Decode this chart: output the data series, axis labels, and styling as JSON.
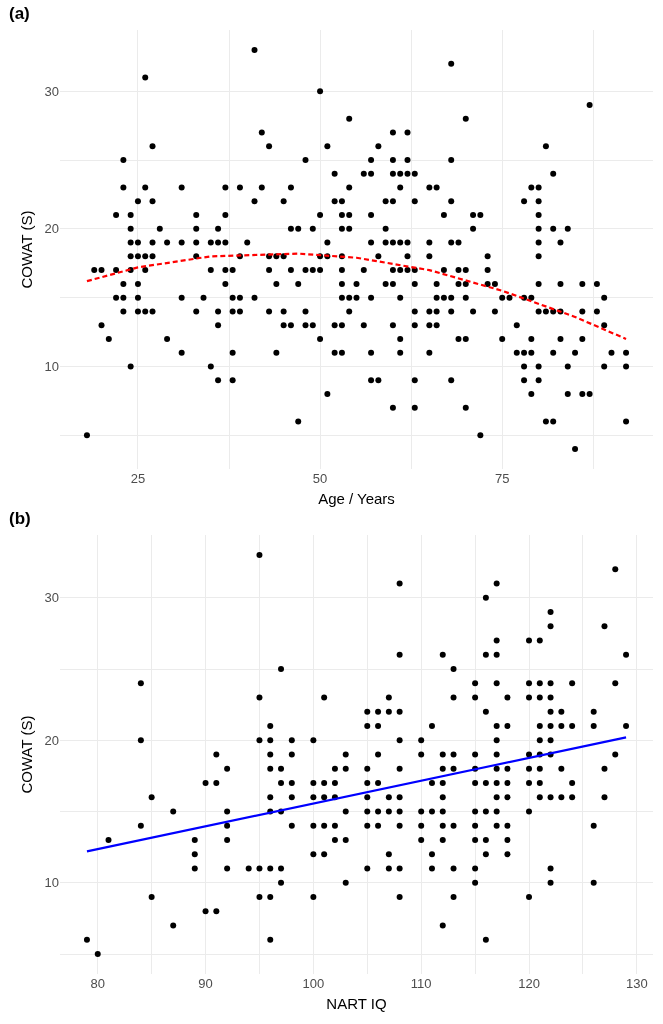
{
  "chart_data": [
    {
      "type": "scatter",
      "title": "(a)",
      "xlabel": "Age / Years",
      "ylabel": "COWAT (S)",
      "grid": true,
      "xlim": [
        14.3,
        95.7
      ],
      "xticks": [
        25,
        {
          "value": 37.5,
          "label": null
        },
        50,
        {
          "value": 62.5,
          "label": null
        },
        75,
        {
          "value": 87.5,
          "label": null
        }
      ],
      "ylim": [
        2.55,
        34.45
      ],
      "yticks": [
        {
          "value": 5,
          "label": null
        },
        10,
        {
          "value": 15,
          "label": null
        },
        20,
        {
          "value": 25,
          "label": null
        },
        30
      ],
      "series": [
        {
          "color": "#000000",
          "marker": "circle",
          "x": [
            41,
            68,
            26,
            50,
            87,
            54,
            70,
            42,
            60,
            62,
            27,
            43,
            51,
            58,
            81,
            23,
            48,
            57,
            60,
            62,
            68,
            52,
            56,
            57,
            60,
            61,
            62,
            63,
            82,
            23,
            26,
            31,
            37,
            39,
            42,
            46,
            54,
            61,
            65,
            66,
            79,
            80,
            25,
            27,
            41,
            45,
            52,
            53,
            59,
            60,
            63,
            68,
            78,
            80,
            22,
            24,
            33,
            37,
            50,
            53,
            54,
            57,
            67,
            71,
            72,
            80,
            24,
            28,
            33,
            36,
            46,
            47,
            49,
            53,
            54,
            59,
            71,
            80,
            82,
            84,
            24,
            25,
            27,
            29,
            31,
            33,
            35,
            36,
            37,
            40,
            51,
            57,
            59,
            60,
            61,
            62,
            65,
            68,
            69,
            80,
            83,
            24,
            25,
            26,
            27,
            33,
            39,
            43,
            44,
            45,
            50,
            51,
            53,
            58,
            62,
            65,
            73,
            80,
            19,
            20,
            22,
            24,
            26,
            35,
            37,
            38,
            43,
            46,
            48,
            49,
            50,
            53,
            56,
            60,
            61,
            62,
            63,
            67,
            69,
            70,
            73,
            23,
            25,
            37,
            44,
            47,
            53,
            55,
            59,
            60,
            63,
            66,
            69,
            70,
            73,
            74,
            80,
            83,
            86,
            88,
            22,
            23,
            25,
            31,
            34,
            38,
            39,
            41,
            53,
            54,
            55,
            57,
            61,
            66,
            67,
            68,
            70,
            75,
            76,
            78,
            79,
            89,
            23,
            25,
            26,
            27,
            33,
            36,
            38,
            39,
            43,
            45,
            48,
            54,
            63,
            65,
            66,
            68,
            71,
            74,
            80,
            81,
            82,
            83,
            86,
            88,
            20,
            36,
            45,
            46,
            48,
            49,
            52,
            53,
            56,
            60,
            63,
            65,
            66,
            77,
            89,
            21,
            29,
            50,
            61,
            69,
            70,
            75,
            79,
            83,
            86,
            31,
            38,
            44,
            52,
            53,
            57,
            61,
            65,
            77,
            78,
            79,
            82,
            85,
            90,
            92,
            24,
            35,
            78,
            80,
            84,
            89,
            92,
            36,
            38,
            57,
            58,
            63,
            68,
            78,
            80,
            51,
            79,
            84,
            86,
            87,
            60,
            63,
            70,
            47,
            81,
            82,
            92,
            18,
            72,
            85
          ],
          "values": [
            33,
            32,
            31,
            30,
            29,
            28,
            28,
            27,
            27,
            27,
            26,
            26,
            26,
            26,
            26,
            25,
            25,
            25,
            25,
            25,
            25,
            24,
            24,
            24,
            24,
            24,
            24,
            24,
            24,
            23,
            23,
            23,
            23,
            23,
            23,
            23,
            23,
            23,
            23,
            23,
            23,
            23,
            22,
            22,
            22,
            22,
            22,
            22,
            22,
            22,
            22,
            22,
            22,
            22,
            21,
            21,
            21,
            21,
            21,
            21,
            21,
            21,
            21,
            21,
            21,
            21,
            20,
            20,
            20,
            20,
            20,
            20,
            20,
            20,
            20,
            20,
            20,
            20,
            20,
            20,
            19,
            19,
            19,
            19,
            19,
            19,
            19,
            19,
            19,
            19,
            19,
            19,
            19,
            19,
            19,
            19,
            19,
            19,
            19,
            19,
            19,
            18,
            18,
            18,
            18,
            18,
            18,
            18,
            18,
            18,
            18,
            18,
            18,
            18,
            18,
            18,
            18,
            18,
            17,
            17,
            17,
            17,
            17,
            17,
            17,
            17,
            17,
            17,
            17,
            17,
            17,
            17,
            17,
            17,
            17,
            17,
            17,
            17,
            17,
            17,
            17,
            16,
            16,
            16,
            16,
            16,
            16,
            16,
            16,
            16,
            16,
            16,
            16,
            16,
            16,
            16,
            16,
            16,
            16,
            16,
            15,
            15,
            15,
            15,
            15,
            15,
            15,
            15,
            15,
            15,
            15,
            15,
            15,
            15,
            15,
            15,
            15,
            15,
            15,
            15,
            15,
            15,
            14,
            14,
            14,
            14,
            14,
            14,
            14,
            14,
            14,
            14,
            14,
            14,
            14,
            14,
            14,
            14,
            14,
            14,
            14,
            14,
            14,
            14,
            14,
            14,
            13,
            13,
            13,
            13,
            13,
            13,
            13,
            13,
            13,
            13,
            13,
            13,
            13,
            13,
            13,
            12,
            12,
            12,
            12,
            12,
            12,
            12,
            12,
            12,
            12,
            11,
            11,
            11,
            11,
            11,
            11,
            11,
            11,
            11,
            11,
            11,
            11,
            11,
            11,
            11,
            10,
            10,
            10,
            10,
            10,
            10,
            10,
            9,
            9,
            9,
            9,
            9,
            9,
            9,
            9,
            8,
            8,
            8,
            8,
            8,
            7,
            7,
            7,
            6,
            6,
            6,
            6,
            5,
            5,
            4
          ]
        },
        {
          "type": "line",
          "color": "#ff0000",
          "marker": "none",
          "line_style": "dashed",
          "x": [
            18,
            25,
            35,
            47,
            55,
            65,
            75,
            85,
            92
          ],
          "values": [
            16.2,
            17.2,
            18.0,
            18.2,
            17.9,
            17.0,
            15.5,
            13.6,
            12.0
          ]
        }
      ]
    },
    {
      "type": "scatter",
      "title": "(b)",
      "xlabel": "NART IQ",
      "ylabel": "COWAT (S)",
      "grid": true,
      "xlim": [
        76.5,
        131.5
      ],
      "xticks": [
        80,
        {
          "value": 85,
          "label": null
        },
        90,
        {
          "value": 95,
          "label": null
        },
        100,
        {
          "value": 105,
          "label": null
        },
        110,
        {
          "value": 115,
          "label": null
        },
        120,
        {
          "value": 125,
          "label": null
        },
        130
      ],
      "ylim": [
        3.6,
        34.4
      ],
      "yticks": [
        {
          "value": 5,
          "label": null
        },
        10,
        {
          "value": 15,
          "label": null
        },
        20,
        {
          "value": 25,
          "label": null
        },
        30
      ],
      "series": [
        {
          "color": "#000000",
          "marker": "circle",
          "x": [
            95,
            128,
            108,
            117,
            116,
            122,
            122,
            127,
            117,
            120,
            121,
            108,
            112,
            116,
            117,
            129,
            97,
            113,
            84,
            115,
            117,
            120,
            121,
            122,
            124,
            128,
            95,
            101,
            107,
            113,
            115,
            118,
            120,
            121,
            122,
            105,
            106,
            107,
            108,
            116,
            122,
            123,
            126,
            96,
            105,
            106,
            111,
            117,
            118,
            121,
            122,
            123,
            124,
            126,
            129,
            84,
            95,
            96,
            98,
            100,
            108,
            110,
            117,
            121,
            122,
            91,
            96,
            98,
            103,
            106,
            110,
            112,
            113,
            115,
            117,
            120,
            121,
            122,
            128,
            92,
            96,
            97,
            102,
            103,
            105,
            108,
            112,
            113,
            115,
            117,
            118,
            120,
            121,
            123,
            127,
            90,
            91,
            97,
            98,
            100,
            101,
            102,
            105,
            106,
            111,
            112,
            115,
            116,
            117,
            118,
            120,
            121,
            124,
            85,
            96,
            98,
            100,
            101,
            102,
            105,
            107,
            108,
            112,
            117,
            118,
            121,
            122,
            123,
            124,
            127,
            87,
            92,
            96,
            97,
            103,
            105,
            106,
            107,
            108,
            110,
            111,
            112,
            115,
            116,
            117,
            120,
            84,
            92,
            98,
            100,
            101,
            102,
            105,
            106,
            108,
            110,
            112,
            113,
            115,
            117,
            118,
            126,
            81,
            89,
            92,
            102,
            103,
            110,
            112,
            115,
            116,
            118,
            89,
            100,
            101,
            107,
            111,
            116,
            118,
            89,
            92,
            94,
            95,
            96,
            97,
            105,
            107,
            108,
            111,
            113,
            115,
            122,
            97,
            103,
            115,
            122,
            126,
            85,
            95,
            96,
            100,
            108,
            113,
            120,
            90,
            91,
            87,
            112,
            79,
            96,
            116,
            80
          ],
          "values": [
            33,
            32,
            31,
            31,
            30,
            29,
            28,
            28,
            27,
            27,
            27,
            26,
            26,
            26,
            26,
            26,
            25,
            25,
            24,
            24,
            24,
            24,
            24,
            24,
            24,
            24,
            23,
            23,
            23,
            23,
            23,
            23,
            23,
            23,
            23,
            22,
            22,
            22,
            22,
            22,
            22,
            22,
            22,
            21,
            21,
            21,
            21,
            21,
            21,
            21,
            21,
            21,
            21,
            21,
            21,
            20,
            20,
            20,
            20,
            20,
            20,
            20,
            20,
            20,
            20,
            19,
            19,
            19,
            19,
            19,
            19,
            19,
            19,
            19,
            19,
            19,
            19,
            19,
            19,
            18,
            18,
            18,
            18,
            18,
            18,
            18,
            18,
            18,
            18,
            18,
            18,
            18,
            18,
            18,
            18,
            17,
            17,
            17,
            17,
            17,
            17,
            17,
            17,
            17,
            17,
            17,
            17,
            17,
            17,
            17,
            17,
            17,
            17,
            16,
            16,
            16,
            16,
            16,
            16,
            16,
            16,
            16,
            16,
            16,
            16,
            16,
            16,
            16,
            16,
            16,
            15,
            15,
            15,
            15,
            15,
            15,
            15,
            15,
            15,
            15,
            15,
            15,
            15,
            15,
            15,
            15,
            14,
            14,
            14,
            14,
            14,
            14,
            14,
            14,
            14,
            14,
            14,
            14,
            14,
            14,
            14,
            14,
            13,
            13,
            13,
            13,
            13,
            13,
            13,
            13,
            13,
            13,
            12,
            12,
            12,
            12,
            12,
            12,
            12,
            11,
            11,
            11,
            11,
            11,
            11,
            11,
            11,
            11,
            11,
            11,
            11,
            11,
            10,
            10,
            10,
            10,
            10,
            9,
            9,
            9,
            9,
            9,
            9,
            9,
            8,
            8,
            7,
            7,
            6,
            6,
            6,
            5
          ]
        },
        {
          "type": "line",
          "color": "#0000ff",
          "marker": "none",
          "line_style": "solid",
          "x": [
            79,
            129
          ],
          "values": [
            12.2,
            20.2
          ]
        }
      ]
    }
  ]
}
